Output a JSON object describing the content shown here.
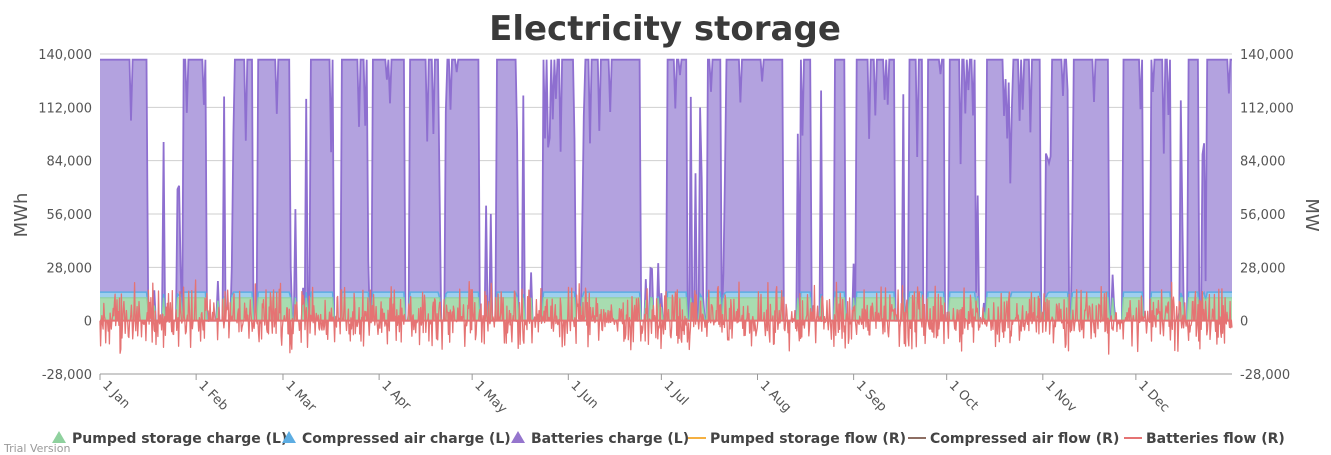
{
  "chart_data": {
    "type": "area",
    "title": "Electricity storage",
    "ylabel_left": "MWh",
    "ylabel_right": "MW",
    "ylim": [
      -28000,
      140000
    ],
    "yticks": [
      -28000,
      0,
      28000,
      56000,
      84000,
      112000,
      140000
    ],
    "ytick_labels": [
      "-28,000",
      "0",
      "28,000",
      "56,000",
      "84,000",
      "112,000",
      "140,000"
    ],
    "xlim_days": [
      0,
      365
    ],
    "x_ticks": [
      {
        "label": "1 Jan",
        "day": 0
      },
      {
        "label": "1 Feb",
        "day": 31
      },
      {
        "label": "1 Mar",
        "day": 59
      },
      {
        "label": "1 Apr",
        "day": 90
      },
      {
        "label": "1 May",
        "day": 120
      },
      {
        "label": "1 Jun",
        "day": 151
      },
      {
        "label": "1 Jul",
        "day": 181
      },
      {
        "label": "1 Aug",
        "day": 212
      },
      {
        "label": "1 Sep",
        "day": 243
      },
      {
        "label": "1 Oct",
        "day": 273
      },
      {
        "label": "1 Nov",
        "day": 304
      },
      {
        "label": "1 Dec",
        "day": 334
      }
    ],
    "grid": true,
    "legend_position": "bottom",
    "capacity": {
      "pumped_storage_mwh": 12000,
      "compressed_air_mwh": 3000,
      "batteries_mwh": 122000
    },
    "full_periods_days": [
      [
        0,
        15
      ],
      [
        27,
        34
      ],
      [
        43,
        49
      ],
      [
        51,
        61
      ],
      [
        68,
        75
      ],
      [
        78,
        86
      ],
      [
        88,
        98
      ],
      [
        100,
        109
      ],
      [
        112,
        122
      ],
      [
        128,
        134
      ],
      [
        143,
        153
      ],
      [
        156,
        174
      ],
      [
        183,
        189
      ],
      [
        196,
        200
      ],
      [
        202,
        220
      ],
      [
        226,
        229
      ],
      [
        237,
        240
      ],
      [
        244,
        250
      ],
      [
        250,
        256
      ],
      [
        261,
        265
      ],
      [
        267,
        272
      ],
      [
        274,
        282
      ],
      [
        286,
        293
      ],
      [
        294,
        303
      ],
      [
        306,
        312
      ],
      [
        314,
        325
      ],
      [
        330,
        336
      ],
      [
        339,
        345
      ],
      [
        351,
        354
      ],
      [
        357,
        365
      ]
    ],
    "batteries_flow_range_mw": [
      -22000,
      28000
    ],
    "series": [
      {
        "name": "Pumped storage charge (L)",
        "axis": "left",
        "type": "area",
        "color": "#8fd19e"
      },
      {
        "name": "Compressed air charge (L)",
        "axis": "left",
        "type": "area",
        "color": "#5dade2"
      },
      {
        "name": "Batteries charge (L)",
        "axis": "left",
        "type": "area",
        "color": "#9575cd"
      },
      {
        "name": "Pumped storage flow (R)",
        "axis": "right",
        "type": "line",
        "color": "#f5b041"
      },
      {
        "name": "Compressed air flow (R)",
        "axis": "right",
        "type": "line",
        "color": "#8d6e63"
      },
      {
        "name": "Batteries flow (R)",
        "axis": "right",
        "type": "line",
        "color": "#e57373"
      }
    ]
  },
  "watermark": "Trial Version",
  "colors": {
    "grid": "#cfcfcf",
    "axis": "#999999",
    "pumped_fill": "#a8dcb0",
    "pumped_stroke": "#8fd19e",
    "air_stroke": "#5dade2",
    "batt_fill": "#b3a2df",
    "batt_stroke": "#8e6fd0",
    "flow_line": "#e57373",
    "pumped_flow_line": "#f5b041",
    "air_flow_line": "#8d6e63",
    "legend_triangle_pumped": "#8fd19e",
    "legend_triangle_air": "#5dade2",
    "legend_triangle_batt": "#9575cd"
  }
}
